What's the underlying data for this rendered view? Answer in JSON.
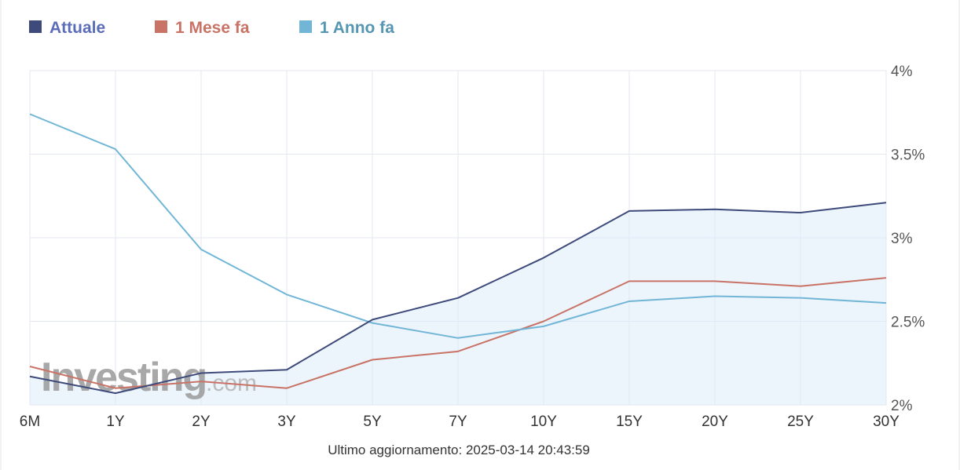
{
  "chart_data": {
    "type": "line",
    "categories": [
      "6M",
      "1Y",
      "2Y",
      "3Y",
      "5Y",
      "7Y",
      "10Y",
      "15Y",
      "20Y",
      "25Y",
      "30Y"
    ],
    "series": [
      {
        "name": "Attuale",
        "color": "#3d4a7a",
        "values": [
          2.17,
          2.07,
          2.19,
          2.21,
          2.51,
          2.64,
          2.88,
          3.16,
          3.17,
          3.15,
          3.21
        ],
        "fill": true
      },
      {
        "name": "1 Mese fa",
        "color": "#c87366",
        "values": [
          2.23,
          2.1,
          2.14,
          2.1,
          2.27,
          2.32,
          2.5,
          2.74,
          2.74,
          2.71,
          2.76
        ]
      },
      {
        "name": "1 Anno fa",
        "color": "#71b6d6",
        "values": [
          3.74,
          3.53,
          2.93,
          2.66,
          2.49,
          2.4,
          2.47,
          2.62,
          2.65,
          2.64,
          2.61
        ]
      }
    ],
    "ylim": [
      2,
      4
    ],
    "y_ticks": [
      {
        "value": 4,
        "label": "4%"
      },
      {
        "value": 3.5,
        "label": "3.5%"
      },
      {
        "value": 3,
        "label": "3%"
      },
      {
        "value": 2.5,
        "label": "2.5%"
      },
      {
        "value": 2,
        "label": "2%"
      }
    ],
    "grid": true,
    "legend_position": "top-left"
  },
  "legend": [
    {
      "label": "Attuale",
      "swatch_color": "#3d4a7a",
      "text_color": "#5b6cb8"
    },
    {
      "label": "1 Mese fa",
      "swatch_color": "#c87366",
      "text_color": "#c87366"
    },
    {
      "label": "1 Anno fa",
      "swatch_color": "#71b6d6",
      "text_color": "#5596b3"
    }
  ],
  "watermark": {
    "brand": "Investing",
    "suffix": ".com"
  },
  "footer": {
    "updated": "Ultimo aggiornamento: 2025-03-14 20:43:59"
  }
}
